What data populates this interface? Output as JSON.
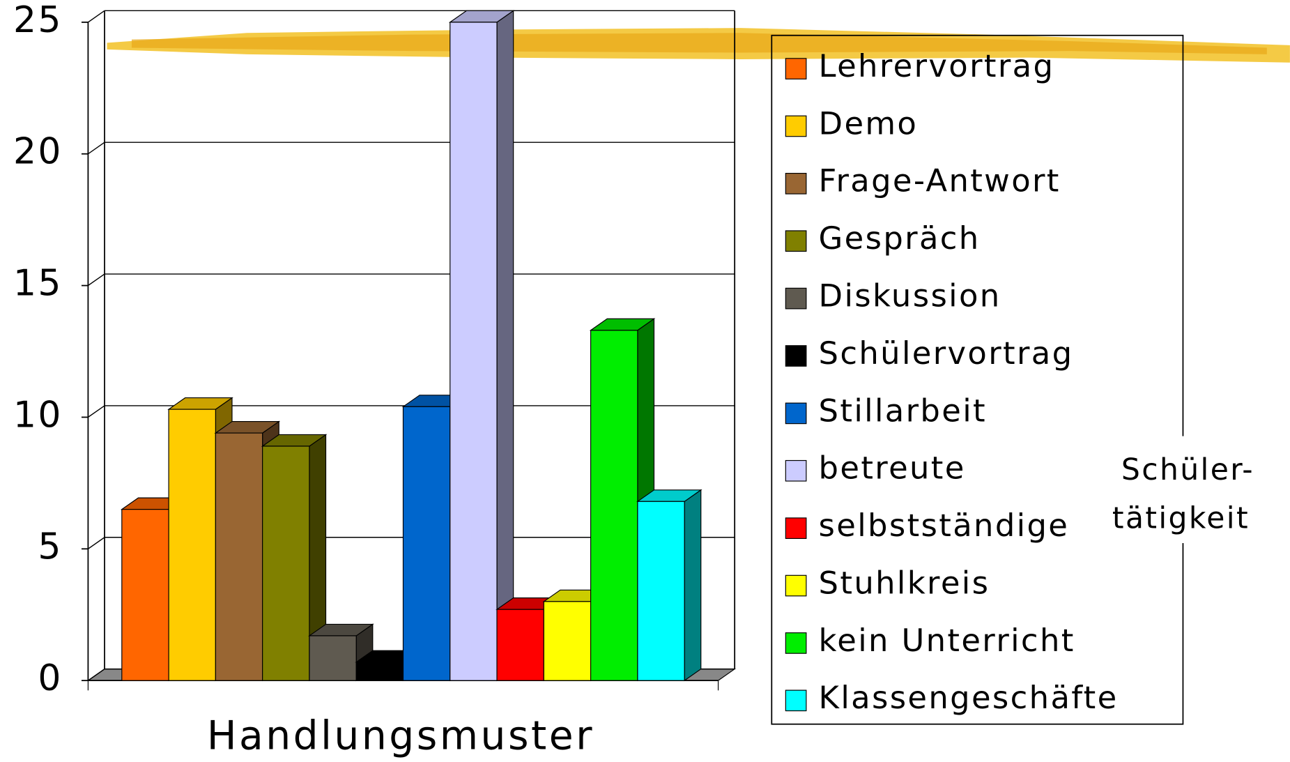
{
  "chart_data": {
    "type": "bar3d",
    "categories": [
      "Handlungsmuster"
    ],
    "series": [
      {
        "name": "Lehrervortrag",
        "color": "#ff6600",
        "values": [
          6.5
        ]
      },
      {
        "name": "Demo",
        "color": "#ffcc00",
        "values": [
          10.3
        ]
      },
      {
        "name": "Frage-Antwort",
        "color": "#996633",
        "values": [
          9.4
        ]
      },
      {
        "name": "Gespräch",
        "color": "#808000",
        "values": [
          8.9
        ]
      },
      {
        "name": "Diskussion",
        "color": "#5f5a50",
        "values": [
          1.7
        ]
      },
      {
        "name": "Schülervortrag",
        "color": "#000000",
        "values": [
          0.7
        ]
      },
      {
        "name": "Stillarbeit",
        "color": "#0066cc",
        "values": [
          10.4
        ]
      },
      {
        "name": "betreute",
        "color": "#ccccff",
        "values": [
          25
        ]
      },
      {
        "name": "selbstständige",
        "color": "#ff0000",
        "values": [
          2.7
        ]
      },
      {
        "name": "Stuhlkreis",
        "color": "#ffff00",
        "values": [
          3.0
        ]
      },
      {
        "name": "kein Unterricht",
        "color": "#00ee00",
        "values": [
          13.3
        ]
      },
      {
        "name": "Klassengeschäfte",
        "color": "#00ffff",
        "values": [
          6.8
        ]
      }
    ],
    "annotation": [
      "Schüler-",
      "tätigkeit"
    ],
    "ylim": [
      0,
      25
    ],
    "yticks": [
      0,
      5,
      10,
      15,
      20,
      25
    ],
    "grid": true,
    "legend": "right"
  }
}
